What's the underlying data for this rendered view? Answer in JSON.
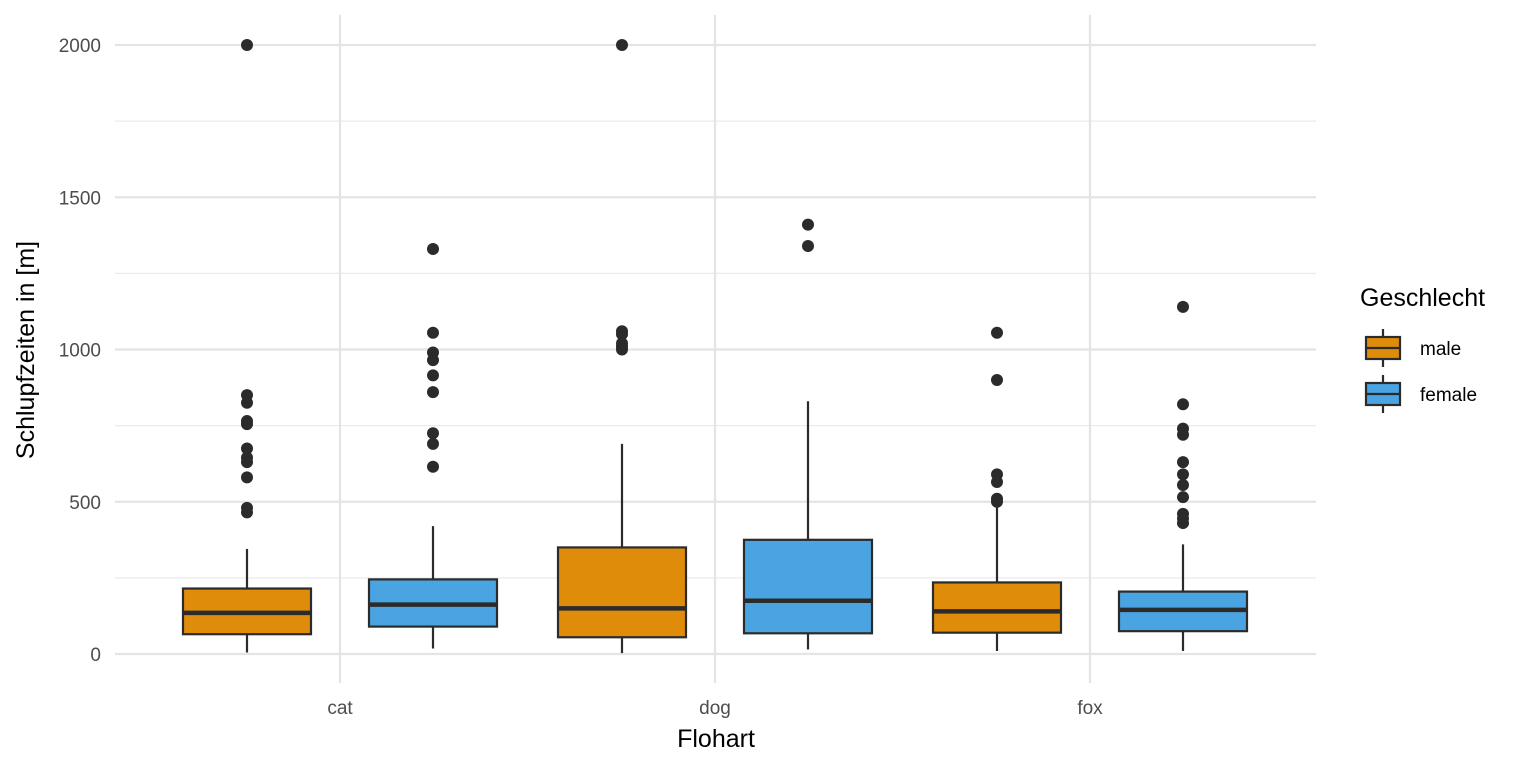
{
  "chart_data": {
    "type": "boxplot",
    "xlabel": "Flohart",
    "ylabel": "Schlupfzeiten in [m]",
    "ylim": [
      -80,
      2100
    ],
    "yticks": [
      0,
      500,
      1000,
      1500,
      2000
    ],
    "categories": [
      "cat",
      "dog",
      "fox"
    ],
    "grid": true,
    "legend": {
      "title": "Geschlecht",
      "position": "right"
    },
    "series": [
      {
        "name": "male",
        "color": "#DE8C0A",
        "boxes": [
          {
            "category": "cat",
            "whisker_low": 5,
            "q1": 65,
            "median": 135,
            "q3": 215,
            "whisker_high": 345,
            "outliers": [
              2000,
              850,
              825,
              765,
              755,
              675,
              645,
              630,
              580,
              480,
              465
            ]
          },
          {
            "category": "dog",
            "whisker_low": 3,
            "q1": 55,
            "median": 150,
            "q3": 350,
            "whisker_high": 690,
            "outliers": [
              2000,
              1060,
              1050,
              1020,
              1010,
              1000
            ]
          },
          {
            "category": "fox",
            "whisker_low": 10,
            "q1": 70,
            "median": 140,
            "q3": 235,
            "whisker_high": 490,
            "outliers": [
              1055,
              900,
              590,
              565,
              510,
              500
            ]
          }
        ]
      },
      {
        "name": "female",
        "color": "#4AA4E2",
        "boxes": [
          {
            "category": "cat",
            "whisker_low": 18,
            "q1": 90,
            "median": 162,
            "q3": 245,
            "whisker_high": 420,
            "outliers": [
              1330,
              1055,
              990,
              965,
              915,
              860,
              725,
              690,
              615
            ]
          },
          {
            "category": "dog",
            "whisker_low": 15,
            "q1": 68,
            "median": 175,
            "q3": 375,
            "whisker_high": 830,
            "outliers": [
              1410,
              1340
            ]
          },
          {
            "category": "fox",
            "whisker_low": 10,
            "q1": 75,
            "median": 145,
            "q3": 205,
            "whisker_high": 360,
            "outliers": [
              1140,
              820,
              740,
              720,
              630,
              590,
              555,
              515,
              460,
              445,
              430
            ]
          }
        ]
      }
    ]
  }
}
